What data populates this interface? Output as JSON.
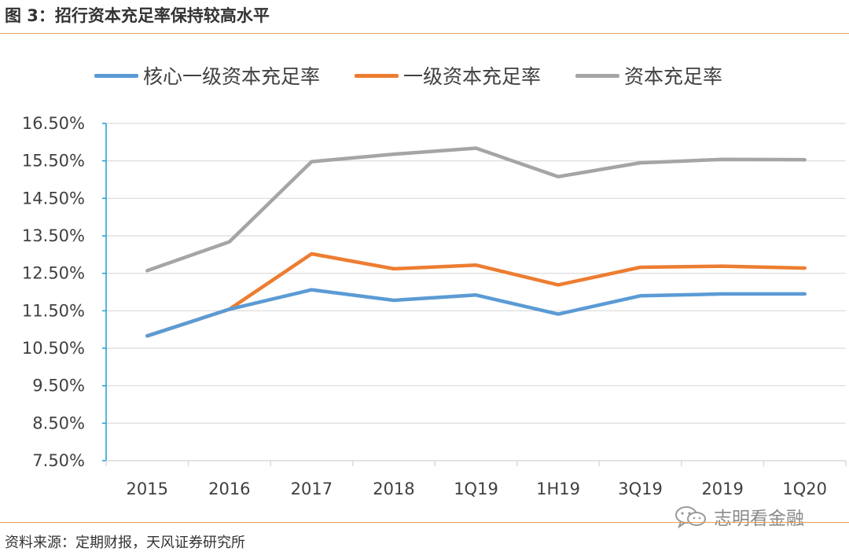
{
  "header": {
    "title": "图 3：招行资本充足率保持较高水平"
  },
  "footer": {
    "source": "资料来源：定期财报，天风证券研究所",
    "watermark_text": "志明看金融"
  },
  "colors": {
    "core_tier1": "#5B9BD5",
    "tier1": "#ED7D31",
    "total": "#A5A5A5",
    "axis": "#1B9FD6",
    "grid": "#D9D9D9",
    "rule": "#E8A060"
  },
  "chart_data": {
    "type": "line",
    "title": "",
    "xlabel": "",
    "ylabel": "",
    "categories": [
      "2015",
      "2016",
      "2017",
      "2018",
      "1Q19",
      "1H19",
      "3Q19",
      "2019",
      "1Q20"
    ],
    "ylim": [
      7.5,
      16.5
    ],
    "yticks": [
      7.5,
      8.5,
      9.5,
      10.5,
      11.5,
      12.5,
      13.5,
      14.5,
      15.5,
      16.5
    ],
    "ytick_labels": [
      "7.50%",
      "8.50%",
      "9.50%",
      "10.50%",
      "11.50%",
      "12.50%",
      "13.50%",
      "14.50%",
      "15.50%",
      "16.50%"
    ],
    "legend_position": "top",
    "grid": true,
    "series": [
      {
        "name": "核心一级资本充足率",
        "color": "#5B9BD5",
        "values": [
          10.83,
          11.54,
          12.06,
          11.78,
          11.92,
          11.41,
          11.9,
          11.95,
          11.95
        ]
      },
      {
        "name": "一级资本充足率",
        "color": "#ED7D31",
        "values": [
          10.83,
          11.54,
          13.02,
          12.62,
          12.72,
          12.19,
          12.66,
          12.69,
          12.64
        ]
      },
      {
        "name": "资本充足率",
        "color": "#A5A5A5",
        "values": [
          12.57,
          13.34,
          15.48,
          15.68,
          15.84,
          15.08,
          15.45,
          15.54,
          15.53
        ]
      }
    ]
  }
}
